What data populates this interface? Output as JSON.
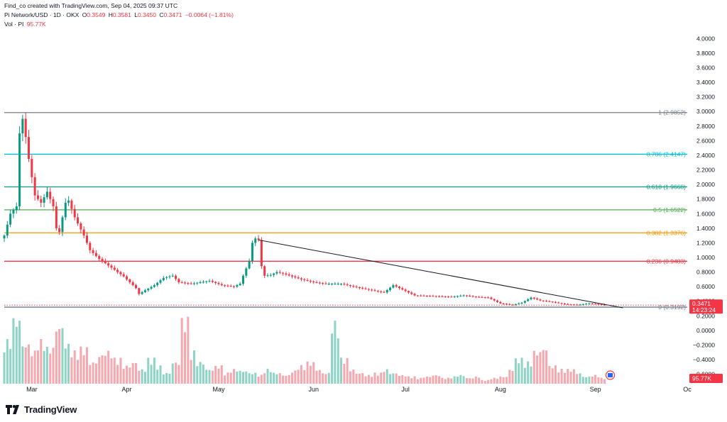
{
  "header": {
    "created_by": "Find_co created with TradingView.com, Sep 04, 2025 09:37 UTC",
    "symbol": "Pi Network/USD · 1D · OKX",
    "o_label": "O",
    "o_value": "0.3549",
    "h_label": "H",
    "h_value": "0.3581",
    "l_label": "L",
    "l_value": "0.3450",
    "c_label": "C",
    "c_value": "0.3471",
    "change": "−0.0064 (−1.81%)",
    "vol_label": "Vol · PI",
    "vol_value": "95.77K"
  },
  "branding": {
    "logo_text": "TradingView"
  },
  "chart_data": {
    "type": "candlestick",
    "title": "Pi Network/USD · 1D · OKX",
    "price_axis": {
      "ticks": [
        "4.0000",
        "3.8000",
        "3.6000",
        "3.4000",
        "3.2000",
        "3.0000",
        "2.8000",
        "2.6000",
        "2.4000",
        "2.2000",
        "2.0000",
        "1.8000",
        "1.6000",
        "1.4000",
        "1.2000",
        "1.0000",
        "0.8000",
        "0.6000",
        "0.4000",
        "0.2000",
        "0.0000",
        "−0.2000",
        "−0.4000",
        "−0.6000"
      ],
      "tick_values": [
        4.0,
        3.8,
        3.6,
        3.4,
        3.2,
        3.0,
        2.8,
        2.6,
        2.4,
        2.2,
        2.0,
        1.8,
        1.6,
        1.4,
        1.2,
        1.0,
        0.8,
        0.6,
        0.4,
        0.2,
        0.0,
        -0.2,
        -0.4,
        -0.6
      ],
      "range": [
        -0.72,
        4.1
      ]
    },
    "time_axis": {
      "labels": [
        "Mar",
        "Apr",
        "May",
        "Jun",
        "Jul",
        "Aug",
        "Sep",
        "Oc"
      ],
      "label_dates": [
        "2025-03-01",
        "2025-04-01",
        "2025-05-01",
        "2025-06-01",
        "2025-07-01",
        "2025-08-01",
        "2025-09-01",
        "2025-10-01"
      ],
      "range": [
        "2025-02-20",
        "2025-10-01"
      ]
    },
    "fibonacci_levels": [
      {
        "label": "1 (2.9852)",
        "value": 2.9852,
        "color": "#787b86"
      },
      {
        "label": "0.786 (2.4147)",
        "value": 2.4147,
        "color": "#00bcd4"
      },
      {
        "label": "0.618 (1.9668)",
        "value": 1.9668,
        "color": "#089981"
      },
      {
        "label": "0.5 (1.6522)",
        "value": 1.6522,
        "color": "#4caf50"
      },
      {
        "label": "0.382 (1.3376)",
        "value": 1.3376,
        "color": "#ff9800"
      },
      {
        "label": "0.236 (0.9483)",
        "value": 0.9483,
        "color": "#f23645"
      },
      {
        "label": "0 (0.3192)",
        "value": 0.3192,
        "color": "#787b86"
      }
    ],
    "trendline": {
      "start": {
        "date": "2025-05-14",
        "value": 1.24
      },
      "end": {
        "date": "2025-09-10",
        "value": 0.31
      }
    },
    "last_price": {
      "value": 0.3471,
      "label": "0.3471",
      "countdown": "14:23:24",
      "color": "#f23645"
    },
    "volume_last": {
      "label": "95.77K"
    },
    "price_anchors": [
      [
        "2025-02-20",
        1.3
      ],
      [
        "2025-02-22",
        1.6
      ],
      [
        "2025-02-24",
        1.7
      ],
      [
        "2025-02-25",
        2.7
      ],
      [
        "2025-02-26",
        2.9
      ],
      [
        "2025-02-27",
        2.65
      ],
      [
        "2025-02-28",
        2.35
      ],
      [
        "2025-03-01",
        2.1
      ],
      [
        "2025-03-02",
        1.85
      ],
      [
        "2025-03-04",
        1.75
      ],
      [
        "2025-03-06",
        1.9
      ],
      [
        "2025-03-08",
        1.7
      ],
      [
        "2025-03-09",
        1.4
      ],
      [
        "2025-03-10",
        1.35
      ],
      [
        "2025-03-12",
        1.75
      ],
      [
        "2025-03-13",
        1.78
      ],
      [
        "2025-03-15",
        1.55
      ],
      [
        "2025-03-18",
        1.3
      ],
      [
        "2025-03-20",
        1.1
      ],
      [
        "2025-03-23",
        0.98
      ],
      [
        "2025-03-27",
        0.86
      ],
      [
        "2025-03-31",
        0.74
      ],
      [
        "2025-04-04",
        0.58
      ],
      [
        "2025-04-05",
        0.5
      ],
      [
        "2025-04-07",
        0.55
      ],
      [
        "2025-04-10",
        0.62
      ],
      [
        "2025-04-13",
        0.72
      ],
      [
        "2025-04-16",
        0.75
      ],
      [
        "2025-04-18",
        0.66
      ],
      [
        "2025-04-22",
        0.64
      ],
      [
        "2025-04-28",
        0.68
      ],
      [
        "2025-05-02",
        0.62
      ],
      [
        "2025-05-06",
        0.6
      ],
      [
        "2025-05-08",
        0.64
      ],
      [
        "2025-05-09",
        0.75
      ],
      [
        "2025-05-11",
        0.95
      ],
      [
        "2025-05-12",
        1.2
      ],
      [
        "2025-05-13",
        1.26
      ],
      [
        "2025-05-14",
        1.24
      ],
      [
        "2025-05-15",
        0.88
      ],
      [
        "2025-05-16",
        0.75
      ],
      [
        "2025-05-18",
        0.76
      ],
      [
        "2025-05-20",
        0.8
      ],
      [
        "2025-05-22",
        0.78
      ],
      [
        "2025-05-25",
        0.74
      ],
      [
        "2025-05-28",
        0.7
      ],
      [
        "2025-06-01",
        0.66
      ],
      [
        "2025-06-05",
        0.64
      ],
      [
        "2025-06-10",
        0.64
      ],
      [
        "2025-06-14",
        0.6
      ],
      [
        "2025-06-20",
        0.55
      ],
      [
        "2025-06-24",
        0.52
      ],
      [
        "2025-06-27",
        0.62
      ],
      [
        "2025-06-30",
        0.56
      ],
      [
        "2025-07-04",
        0.48
      ],
      [
        "2025-07-10",
        0.47
      ],
      [
        "2025-07-16",
        0.46
      ],
      [
        "2025-07-20",
        0.48
      ],
      [
        "2025-07-24",
        0.46
      ],
      [
        "2025-07-28",
        0.45
      ],
      [
        "2025-08-01",
        0.37
      ],
      [
        "2025-08-05",
        0.35
      ],
      [
        "2025-08-08",
        0.38
      ],
      [
        "2025-08-11",
        0.45
      ],
      [
        "2025-08-14",
        0.41
      ],
      [
        "2025-08-18",
        0.39
      ],
      [
        "2025-08-22",
        0.36
      ],
      [
        "2025-08-26",
        0.35
      ],
      [
        "2025-08-30",
        0.37
      ],
      [
        "2025-09-02",
        0.36
      ],
      [
        "2025-09-04",
        0.347
      ]
    ],
    "volume_pattern": [
      0.6,
      0.9,
      0.55,
      0.45,
      0.6,
      0.5,
      0.8,
      0.55,
      0.45,
      0.5,
      0.3,
      0.4,
      0.45,
      0.35,
      0.25,
      0.3,
      0.2,
      0.35,
      0.25,
      0.15,
      0.3,
      0.9,
      0.45,
      0.3,
      0.2,
      0.25,
      0.15,
      0.2,
      0.18,
      0.15,
      0.12,
      0.2,
      0.15,
      0.12,
      0.18,
      0.25,
      0.3,
      0.2,
      0.15,
      0.85,
      0.35,
      0.2,
      0.15,
      0.12,
      0.15,
      0.2,
      0.15,
      0.12,
      0.1,
      0.08,
      0.1,
      0.12,
      0.08,
      0.1,
      0.12,
      0.08,
      0.1,
      0.05,
      0.08,
      0.1,
      0.2,
      0.35,
      0.3,
      0.45,
      0.5,
      0.25,
      0.2,
      0.2,
      0.15,
      0.1,
      0.12,
      0.08
    ]
  }
}
